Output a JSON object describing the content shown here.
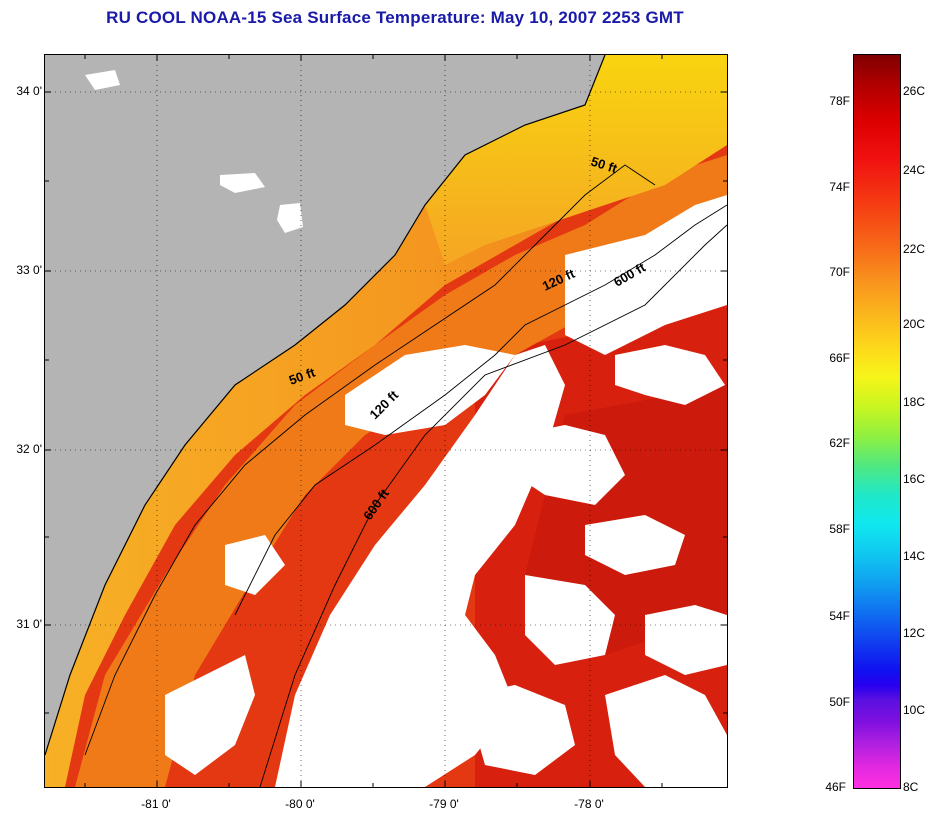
{
  "title": "RU COOL  NOAA-15  Sea Surface Temperature:  May 10, 2007 2253 GMT",
  "map": {
    "latitude_labels": [
      "34 0'",
      "33 0'",
      "32 0'",
      "31 0'"
    ],
    "longitude_labels": [
      "-81 0'",
      "-80 0'",
      "-79 0'",
      "-78 0'"
    ],
    "isobath_labels": [
      {
        "text": "50 ft"
      },
      {
        "text": "120 ft"
      },
      {
        "text": "600 ft"
      },
      {
        "text": "50 ft"
      },
      {
        "text": "120 ft"
      },
      {
        "text": "600 ft"
      }
    ],
    "colors": {
      "land": "#b4b4b4",
      "cloud": "#ffffff",
      "nearshore_warm": "#f5a623",
      "midshelf": "#f57a18",
      "offshore": "#e83010",
      "gulfstream": "#d81a0e",
      "coast_line": "#000000"
    }
  },
  "colorbar": {
    "fahrenheit_labels": [
      "78F",
      "74F",
      "70F",
      "66F",
      "62F",
      "58F",
      "54F",
      "50F",
      "46F"
    ],
    "celsius_labels": [
      "26C",
      "24C",
      "22C",
      "20C",
      "18C",
      "16C",
      "14C",
      "12C",
      "10C",
      "8C"
    ],
    "range_c": [
      8,
      27
    ],
    "range_f": [
      46,
      80
    ]
  }
}
